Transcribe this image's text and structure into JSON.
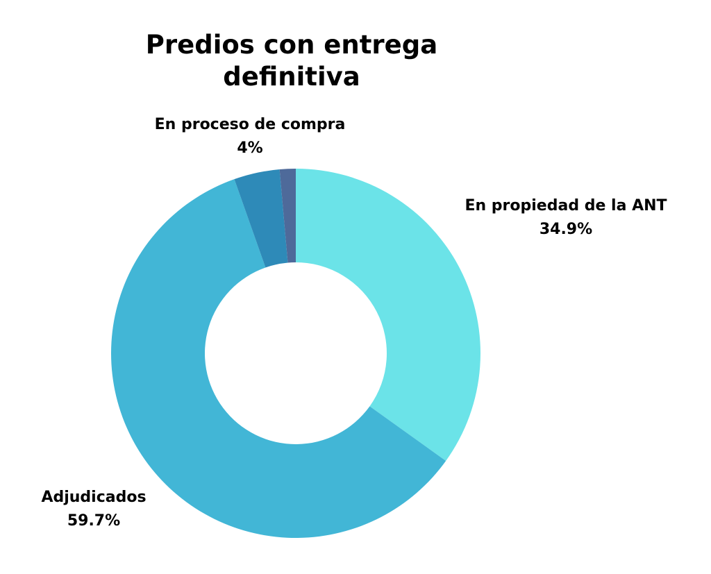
{
  "chart_data": {
    "type": "pie",
    "donut": true,
    "title": "Predios con entrega definitiva",
    "slices": [
      {
        "label": "En propiedad de la ANT",
        "value": 34.9,
        "display": "34.9%",
        "color": "#6BE3E8"
      },
      {
        "label": "Adjudicados",
        "value": 59.7,
        "display": "59.7%",
        "color": "#42B6D6"
      },
      {
        "label": "En proceso de compra",
        "value": 4,
        "display": "4%",
        "color": "#2E8AB8"
      },
      {
        "label": "",
        "value": 1.4,
        "display": "",
        "color": "#4E6A9A"
      }
    ]
  }
}
